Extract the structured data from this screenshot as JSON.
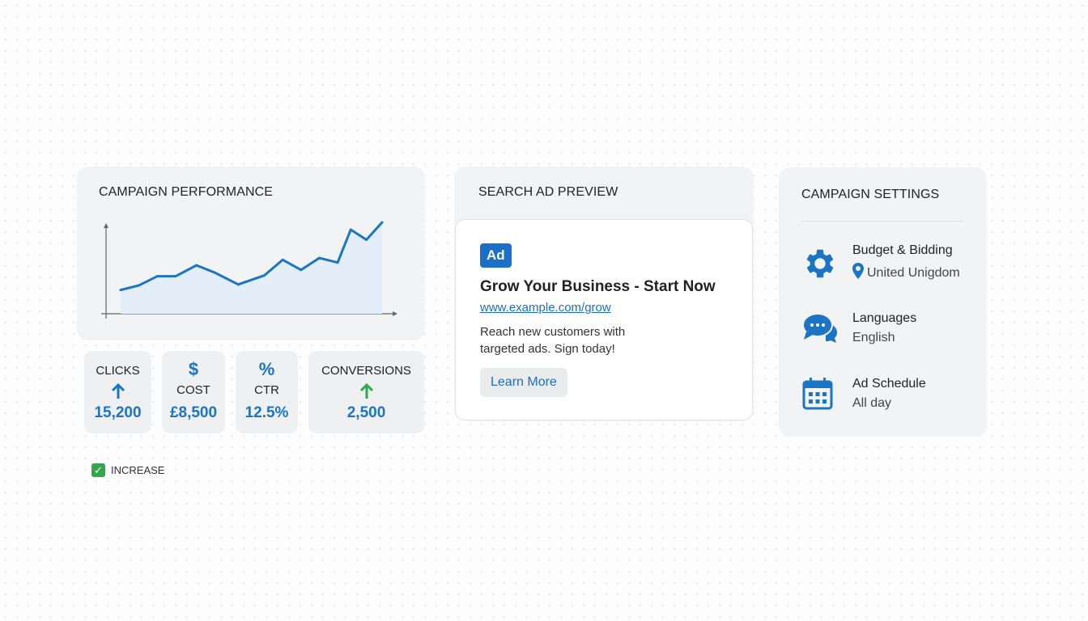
{
  "performance": {
    "title": "CAMPAIGN PERFORMANCE"
  },
  "chart_data": {
    "type": "area",
    "title": "",
    "xlabel": "",
    "ylabel": "",
    "grid": false,
    "x": [
      0,
      7,
      14,
      21,
      29,
      36,
      45,
      48,
      55,
      62,
      69,
      76,
      83,
      88,
      94,
      100
    ],
    "values": [
      26,
      31,
      41,
      41,
      53,
      45,
      32,
      35,
      42,
      59,
      48,
      61,
      56,
      92,
      81,
      100
    ],
    "line_color": "#1c74c4",
    "fill_color": "#e3eef9"
  },
  "stats": [
    {
      "label": "CLICKS",
      "icon": "arrow-up-icon",
      "value": "15,200",
      "icon_color": "#1c74c4"
    },
    {
      "symbol": "$",
      "label": "COST",
      "value": "£8,500"
    },
    {
      "symbol": "%",
      "label": "CTR",
      "value": "12.5%"
    },
    {
      "label": "CONVERSIONS",
      "icon": "arrow-up-icon",
      "value": "2,500",
      "icon_color": "#2eaa4a"
    }
  ],
  "legend": {
    "label": "INCREASE",
    "check": "✓"
  },
  "preview": {
    "title": "SEARCH AD PREVIEW",
    "badge": "Ad",
    "headline": "Grow Your Business - Start Now",
    "url": "www.example.com/grow",
    "description": "Reach new customers with targeted ads. Sign today!",
    "cta": "Learn More"
  },
  "settings": {
    "title": "CAMPAIGN SETTINGS",
    "items": [
      {
        "icon": "gear-icon",
        "title": "Budget & Bidding",
        "value": "United Unigdom",
        "value_icon": "location-pin-icon"
      },
      {
        "icon": "chat-icon",
        "title": "Languages",
        "value": "English"
      },
      {
        "icon": "calendar-icon",
        "title": "Ad Schedule",
        "value": "All day"
      }
    ]
  },
  "colors": {
    "accent": "#1c74c4",
    "green": "#2eaa4a"
  }
}
